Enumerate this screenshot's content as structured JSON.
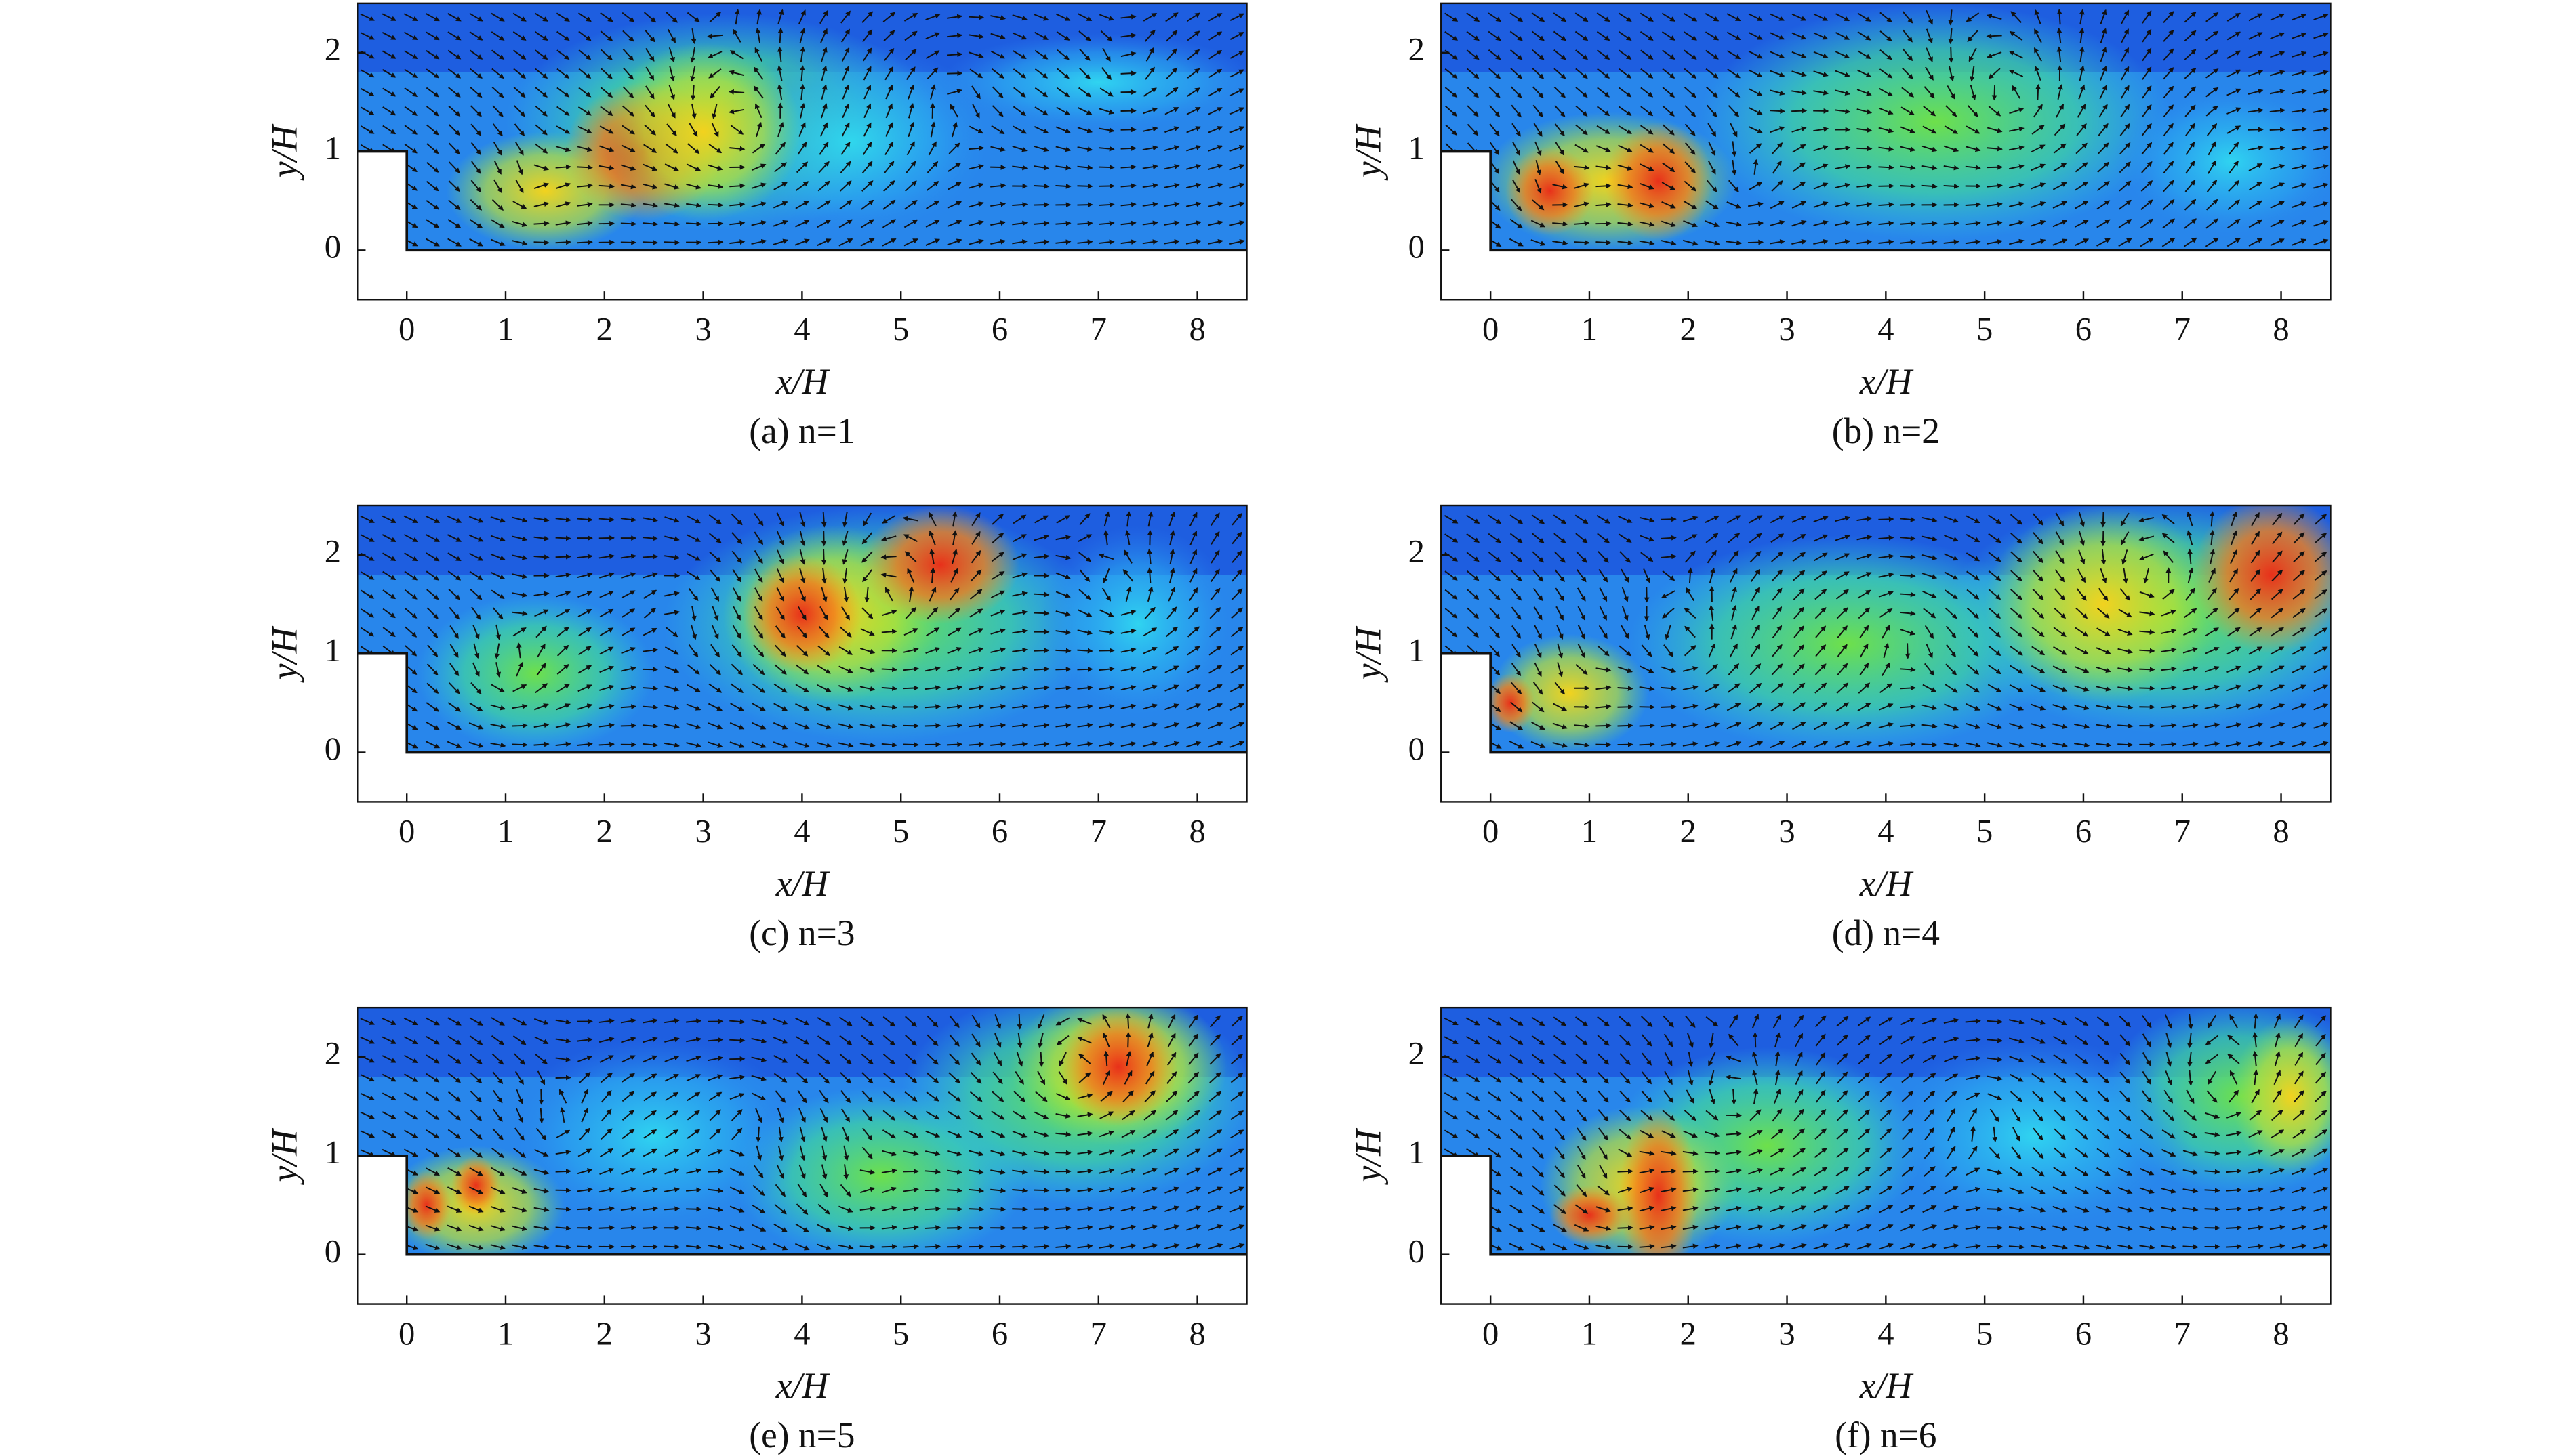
{
  "chart_data": [
    {
      "type": "vector-field",
      "caption": "(a) n=1",
      "xlabel": "x/H",
      "ylabel": "y/H",
      "xlim": [
        -0.5,
        8.5
      ],
      "ylim": [
        -0.5,
        2.5
      ],
      "xticks": [
        0,
        1,
        2,
        3,
        4,
        5,
        6,
        7,
        8
      ],
      "yticks": [
        0,
        1,
        2
      ]
    },
    {
      "type": "vector-field",
      "caption": "(b) n=2",
      "xlabel": "x/H",
      "ylabel": "y/H",
      "xlim": [
        -0.5,
        8.5
      ],
      "ylim": [
        -0.5,
        2.5
      ],
      "xticks": [
        0,
        1,
        2,
        3,
        4,
        5,
        6,
        7,
        8
      ],
      "yticks": [
        0,
        1,
        2
      ]
    },
    {
      "type": "vector-field",
      "caption": "(c) n=3",
      "xlabel": "x/H",
      "ylabel": "y/H",
      "xlim": [
        -0.5,
        8.5
      ],
      "ylim": [
        -0.5,
        2.5
      ],
      "xticks": [
        0,
        1,
        2,
        3,
        4,
        5,
        6,
        7,
        8
      ],
      "yticks": [
        0,
        1,
        2
      ]
    },
    {
      "type": "vector-field",
      "caption": "(d) n=4",
      "xlabel": "x/H",
      "ylabel": "y/H",
      "xlim": [
        -0.5,
        8.5
      ],
      "ylim": [
        -0.5,
        2.5
      ],
      "xticks": [
        0,
        1,
        2,
        3,
        4,
        5,
        6,
        7,
        8
      ],
      "yticks": [
        0,
        1,
        2
      ]
    },
    {
      "type": "vector-field",
      "caption": "(e) n=5",
      "xlabel": "x/H",
      "ylabel": "y/H",
      "xlim": [
        -0.5,
        8.5
      ],
      "ylim": [
        -0.5,
        2.5
      ],
      "xticks": [
        0,
        1,
        2,
        3,
        4,
        5,
        6,
        7,
        8
      ],
      "yticks": [
        0,
        1,
        2
      ]
    },
    {
      "type": "vector-field",
      "caption": "(f) n=6",
      "xlabel": "x/H",
      "ylabel": "y/H",
      "xlim": [
        -0.5,
        8.5
      ],
      "ylim": [
        -0.5,
        2.5
      ],
      "xticks": [
        0,
        1,
        2,
        3,
        4,
        5,
        6,
        7,
        8
      ],
      "yticks": [
        0,
        1,
        2
      ]
    }
  ]
}
